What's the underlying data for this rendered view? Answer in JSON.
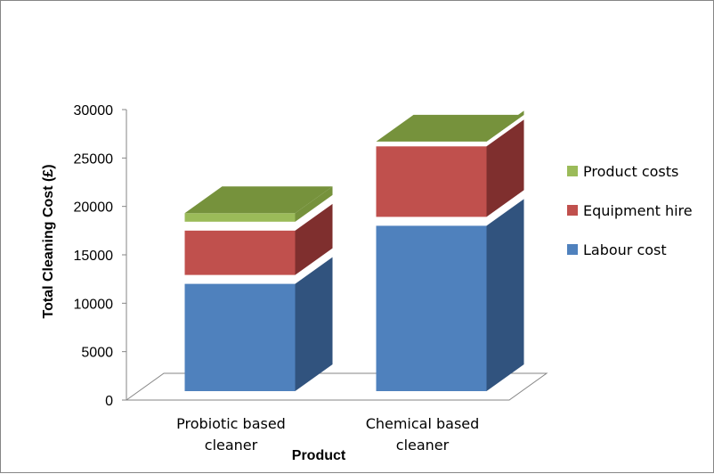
{
  "chart_data": {
    "type": "bar",
    "stacked": true,
    "three_d": true,
    "categories": [
      "Probiotic  based cleaner",
      "Chemical  based cleaner"
    ],
    "category_lines": [
      [
        "Probiotic  based",
        "cleaner"
      ],
      [
        "Chemical  based",
        "cleaner"
      ]
    ],
    "series": [
      {
        "name": "Labour cost",
        "values": [
          12000,
          18000
        ],
        "color": "#4F81BD",
        "side_color": "#31537E"
      },
      {
        "name": "Equipment hire",
        "values": [
          5500,
          8200
        ],
        "color": "#C0504D",
        "side_color": "#7F2F2E"
      },
      {
        "name": "Product costs",
        "values": [
          1800,
          500
        ],
        "color": "#9BBB59",
        "side_color": "#76923C"
      }
    ],
    "legend_order": [
      "Product costs",
      "Equipment hire",
      "Labour cost"
    ],
    "legend_position": "right",
    "xlabel": "Product",
    "ylabel": "Total Cleaning Cost (£)",
    "ylim": [
      0,
      30000
    ],
    "yticks": [
      0,
      5000,
      10000,
      15000,
      20000,
      25000,
      30000
    ],
    "grid": false
  }
}
